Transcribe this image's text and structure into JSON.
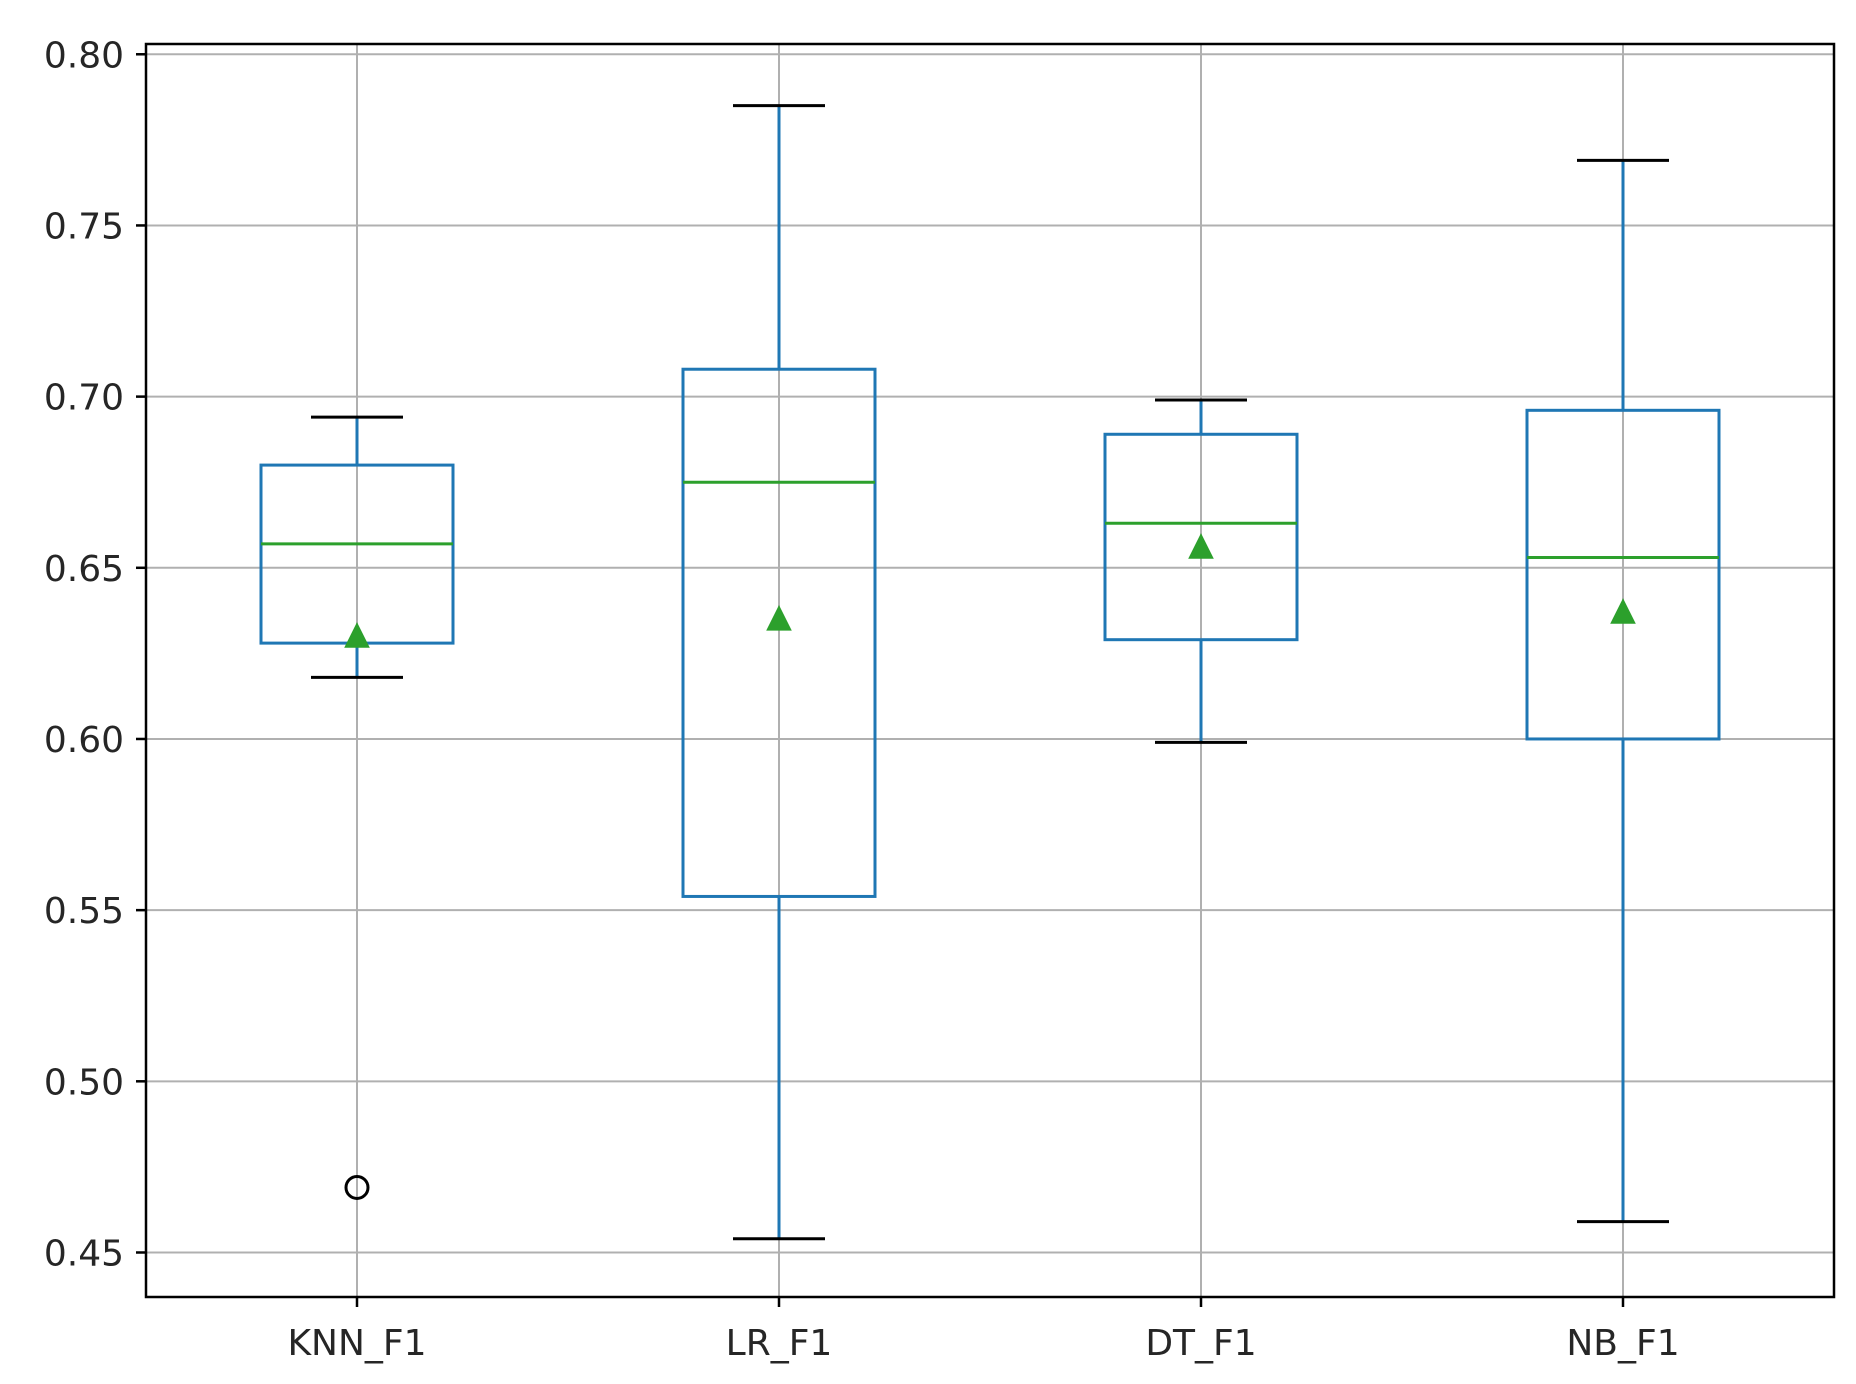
{
  "chart_data": {
    "type": "boxplot",
    "title": "",
    "xlabel": "",
    "ylabel": "",
    "ylim": [
      0.437,
      0.803
    ],
    "grid": true,
    "yticks": [
      "0.45",
      "0.50",
      "0.55",
      "0.60",
      "0.65",
      "0.70",
      "0.75",
      "0.80"
    ],
    "categories": [
      "KNN_F1",
      "LR_F1",
      "DT_F1",
      "NB_F1"
    ],
    "series": [
      {
        "whisker_low": 0.618,
        "q1": 0.628,
        "median": 0.657,
        "q3": 0.68,
        "whisker_high": 0.694,
        "mean": 0.63,
        "outliers": [
          0.469
        ]
      },
      {
        "whisker_low": 0.454,
        "q1": 0.554,
        "median": 0.675,
        "q3": 0.708,
        "whisker_high": 0.785,
        "mean": 0.635,
        "outliers": []
      },
      {
        "whisker_low": 0.599,
        "q1": 0.629,
        "median": 0.663,
        "q3": 0.689,
        "whisker_high": 0.699,
        "mean": 0.656,
        "outliers": []
      },
      {
        "whisker_low": 0.459,
        "q1": 0.6,
        "median": 0.653,
        "q3": 0.696,
        "whisker_high": 0.769,
        "mean": 0.637,
        "outliers": []
      }
    ],
    "colors": {
      "box": "#1f77b4",
      "median": "#2ca02c",
      "mean": "#2ca02c",
      "grid": "#b0b0b0",
      "axis": "#000000",
      "outlier": "#000000"
    }
  }
}
